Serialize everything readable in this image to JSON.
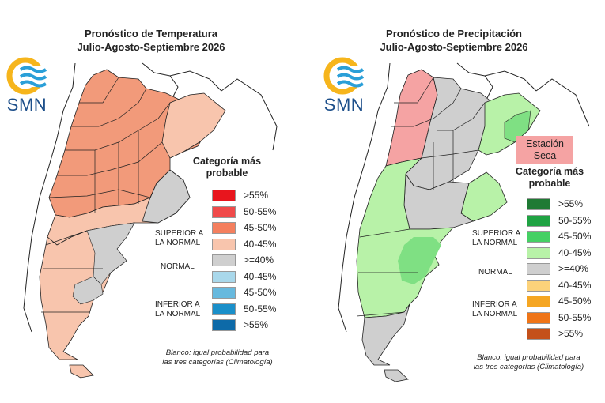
{
  "logo": {
    "text": "SMN",
    "icon": "smn-sun-waves-icon"
  },
  "temperature": {
    "title_line1": "Pronóstico de Temperatura",
    "title_line2": "Julio-Agosto-Septiembre 2026",
    "legend_title": "Categoría más probable",
    "legend": [
      {
        "label": ">55%",
        "color": "#e8151d"
      },
      {
        "label": "50-55%",
        "color": "#f04a4a"
      },
      {
        "label": "45-50%",
        "color": "#f47f5e"
      },
      {
        "label": "40-45%",
        "color": "#f8c5ad"
      },
      {
        "label": ">=40%",
        "color": "#cfcfcf"
      },
      {
        "label": "40-45%",
        "color": "#a9d8eb"
      },
      {
        "label": "45-50%",
        "color": "#67b9de"
      },
      {
        "label": "50-55%",
        "color": "#1a8fc9"
      },
      {
        "label": ">55%",
        "color": "#0d6aa8"
      }
    ],
    "category_above": "SUPERIOR A\nLA NORMAL",
    "category_normal": "NORMAL",
    "category_below": "INFERIOR A\nLA NORMAL",
    "note_line1": "Blanco: igual probabilidad para",
    "note_line2": "las tres categorías (Climatología)"
  },
  "precipitation": {
    "title_line1": "Pronóstico de Precipitación",
    "title_line2": "Julio-Agosto-Septiembre 2026",
    "dry_season_label": "Estación Seca",
    "legend_title": "Categoría más probable",
    "legend": [
      {
        "label": ">55%",
        "color": "#1f7a34"
      },
      {
        "label": "50-55%",
        "color": "#1fa343"
      },
      {
        "label": "45-50%",
        "color": "#45d064"
      },
      {
        "label": "40-45%",
        "color": "#b8f2a8"
      },
      {
        "label": ">=40%",
        "color": "#cfcfcf"
      },
      {
        "label": "40-45%",
        "color": "#fcd27a"
      },
      {
        "label": "45-50%",
        "color": "#f5a623"
      },
      {
        "label": "50-55%",
        "color": "#ef7518"
      },
      {
        "label": ">55%",
        "color": "#c4501a"
      }
    ],
    "category_above": "SUPERIOR A\nLA NORMAL",
    "category_normal": "NORMAL",
    "category_below": "INFERIOR A\nLA NORMAL",
    "note_line1": "Blanco: igual probabilidad para",
    "note_line2": "las tres categorías (Climatología)"
  },
  "map_colors": {
    "temp_north": "#f29a7a",
    "temp_mid": "#f8c5ad",
    "temp_gray": "#cfcfcf",
    "precip_dry": "#f5a3a3",
    "precip_green": "#b8f2a8",
    "precip_green2": "#7fe083",
    "precip_gray": "#cfcfcf",
    "border": "#222222"
  }
}
